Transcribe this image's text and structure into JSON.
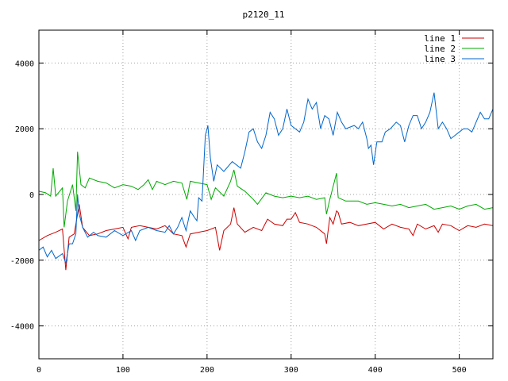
{
  "chart_data": {
    "type": "line",
    "title": "p2120_11",
    "xlabel": "",
    "ylabel": "",
    "xlim": [
      0,
      540
    ],
    "ylim": [
      -5000,
      5000
    ],
    "x_ticks": [
      0,
      100,
      200,
      300,
      400,
      500
    ],
    "y_ticks": [
      -4000,
      -2000,
      0,
      2000,
      4000
    ],
    "grid": true,
    "legend_position": "top-right",
    "series": [
      {
        "name": "line 1",
        "color": "#cc0000",
        "points": [
          [
            0,
            -1400
          ],
          [
            10,
            -1250
          ],
          [
            20,
            -1150
          ],
          [
            28,
            -1050
          ],
          [
            32,
            -2300
          ],
          [
            36,
            -1300
          ],
          [
            42,
            -1200
          ],
          [
            46,
            -600
          ],
          [
            48,
            -300
          ],
          [
            52,
            -1000
          ],
          [
            60,
            -1250
          ],
          [
            70,
            -1200
          ],
          [
            80,
            -1100
          ],
          [
            90,
            -1050
          ],
          [
            100,
            -1000
          ],
          [
            106,
            -1350
          ],
          [
            110,
            -1000
          ],
          [
            120,
            -950
          ],
          [
            130,
            -1000
          ],
          [
            140,
            -1050
          ],
          [
            150,
            -950
          ],
          [
            160,
            -1200
          ],
          [
            170,
            -1250
          ],
          [
            175,
            -1600
          ],
          [
            180,
            -1200
          ],
          [
            190,
            -1150
          ],
          [
            200,
            -1100
          ],
          [
            210,
            -1000
          ],
          [
            215,
            -1700
          ],
          [
            220,
            -1100
          ],
          [
            228,
            -900
          ],
          [
            232,
            -400
          ],
          [
            236,
            -900
          ],
          [
            245,
            -1150
          ],
          [
            255,
            -1000
          ],
          [
            265,
            -1100
          ],
          [
            272,
            -750
          ],
          [
            280,
            -900
          ],
          [
            290,
            -950
          ],
          [
            295,
            -750
          ],
          [
            300,
            -750
          ],
          [
            305,
            -550
          ],
          [
            310,
            -850
          ],
          [
            320,
            -900
          ],
          [
            330,
            -1000
          ],
          [
            340,
            -1200
          ],
          [
            342,
            -1500
          ],
          [
            346,
            -700
          ],
          [
            350,
            -900
          ],
          [
            354,
            -500
          ],
          [
            356,
            -550
          ],
          [
            360,
            -900
          ],
          [
            370,
            -850
          ],
          [
            380,
            -950
          ],
          [
            390,
            -900
          ],
          [
            400,
            -850
          ],
          [
            410,
            -1050
          ],
          [
            420,
            -900
          ],
          [
            430,
            -1000
          ],
          [
            440,
            -1050
          ],
          [
            445,
            -1250
          ],
          [
            450,
            -900
          ],
          [
            460,
            -1050
          ],
          [
            470,
            -950
          ],
          [
            475,
            -1150
          ],
          [
            480,
            -900
          ],
          [
            490,
            -950
          ],
          [
            500,
            -1100
          ],
          [
            510,
            -950
          ],
          [
            520,
            -1000
          ],
          [
            530,
            -900
          ],
          [
            540,
            -950
          ]
        ]
      },
      {
        "name": "line 2",
        "color": "#00aa00",
        "points": [
          [
            0,
            100
          ],
          [
            8,
            50
          ],
          [
            14,
            -50
          ],
          [
            17,
            800
          ],
          [
            20,
            -50
          ],
          [
            28,
            200
          ],
          [
            30,
            -1000
          ],
          [
            34,
            -200
          ],
          [
            40,
            300
          ],
          [
            44,
            -500
          ],
          [
            46,
            1300
          ],
          [
            50,
            300
          ],
          [
            55,
            200
          ],
          [
            60,
            500
          ],
          [
            70,
            400
          ],
          [
            80,
            350
          ],
          [
            90,
            200
          ],
          [
            100,
            300
          ],
          [
            110,
            250
          ],
          [
            118,
            150
          ],
          [
            125,
            300
          ],
          [
            130,
            450
          ],
          [
            135,
            150
          ],
          [
            140,
            400
          ],
          [
            150,
            300
          ],
          [
            160,
            400
          ],
          [
            170,
            350
          ],
          [
            176,
            -150
          ],
          [
            180,
            400
          ],
          [
            190,
            350
          ],
          [
            200,
            300
          ],
          [
            205,
            -150
          ],
          [
            210,
            200
          ],
          [
            220,
            -50
          ],
          [
            228,
            400
          ],
          [
            232,
            750
          ],
          [
            236,
            250
          ],
          [
            245,
            100
          ],
          [
            255,
            -150
          ],
          [
            260,
            -300
          ],
          [
            270,
            50
          ],
          [
            280,
            -50
          ],
          [
            290,
            -100
          ],
          [
            300,
            -50
          ],
          [
            310,
            -100
          ],
          [
            320,
            -50
          ],
          [
            330,
            -150
          ],
          [
            340,
            -100
          ],
          [
            342,
            -600
          ],
          [
            346,
            -150
          ],
          [
            352,
            450
          ],
          [
            354,
            650
          ],
          [
            356,
            -100
          ],
          [
            365,
            -200
          ],
          [
            380,
            -200
          ],
          [
            390,
            -300
          ],
          [
            400,
            -250
          ],
          [
            410,
            -300
          ],
          [
            420,
            -350
          ],
          [
            430,
            -300
          ],
          [
            440,
            -400
          ],
          [
            450,
            -350
          ],
          [
            460,
            -300
          ],
          [
            470,
            -450
          ],
          [
            480,
            -400
          ],
          [
            490,
            -350
          ],
          [
            500,
            -450
          ],
          [
            510,
            -350
          ],
          [
            520,
            -300
          ],
          [
            530,
            -450
          ],
          [
            540,
            -400
          ]
        ]
      },
      {
        "name": "line 3",
        "color": "#0066cc",
        "points": [
          [
            0,
            -1700
          ],
          [
            5,
            -1600
          ],
          [
            10,
            -1900
          ],
          [
            15,
            -1700
          ],
          [
            20,
            -1950
          ],
          [
            28,
            -1800
          ],
          [
            32,
            -2100
          ],
          [
            36,
            -1500
          ],
          [
            40,
            -1500
          ],
          [
            44,
            -1200
          ],
          [
            46,
            0
          ],
          [
            48,
            -600
          ],
          [
            52,
            -1000
          ],
          [
            58,
            -1300
          ],
          [
            65,
            -1150
          ],
          [
            70,
            -1250
          ],
          [
            80,
            -1300
          ],
          [
            90,
            -1100
          ],
          [
            100,
            -1250
          ],
          [
            110,
            -1100
          ],
          [
            115,
            -1400
          ],
          [
            120,
            -1100
          ],
          [
            130,
            -1000
          ],
          [
            140,
            -1100
          ],
          [
            150,
            -1150
          ],
          [
            155,
            -950
          ],
          [
            160,
            -1200
          ],
          [
            165,
            -1000
          ],
          [
            170,
            -700
          ],
          [
            175,
            -1100
          ],
          [
            180,
            -500
          ],
          [
            185,
            -700
          ],
          [
            188,
            -800
          ],
          [
            190,
            -100
          ],
          [
            194,
            -200
          ],
          [
            198,
            1800
          ],
          [
            201,
            2100
          ],
          [
            204,
            1100
          ],
          [
            208,
            400
          ],
          [
            212,
            900
          ],
          [
            220,
            700
          ],
          [
            230,
            1000
          ],
          [
            240,
            800
          ],
          [
            245,
            1300
          ],
          [
            250,
            1900
          ],
          [
            255,
            2000
          ],
          [
            260,
            1600
          ],
          [
            265,
            1400
          ],
          [
            270,
            1800
          ],
          [
            275,
            2500
          ],
          [
            280,
            2300
          ],
          [
            285,
            1800
          ],
          [
            290,
            2000
          ],
          [
            295,
            2600
          ],
          [
            300,
            2100
          ],
          [
            310,
            1900
          ],
          [
            315,
            2200
          ],
          [
            320,
            2900
          ],
          [
            325,
            2600
          ],
          [
            330,
            2800
          ],
          [
            335,
            2000
          ],
          [
            340,
            2400
          ],
          [
            345,
            2300
          ],
          [
            350,
            1800
          ],
          [
            355,
            2500
          ],
          [
            360,
            2200
          ],
          [
            365,
            2000
          ],
          [
            375,
            2100
          ],
          [
            380,
            2000
          ],
          [
            385,
            2200
          ],
          [
            390,
            1700
          ],
          [
            392,
            1400
          ],
          [
            395,
            1500
          ],
          [
            398,
            900
          ],
          [
            402,
            1600
          ],
          [
            408,
            1600
          ],
          [
            412,
            1900
          ],
          [
            418,
            2000
          ],
          [
            425,
            2200
          ],
          [
            430,
            2100
          ],
          [
            435,
            1600
          ],
          [
            440,
            2100
          ],
          [
            445,
            2400
          ],
          [
            450,
            2400
          ],
          [
            455,
            2000
          ],
          [
            460,
            2200
          ],
          [
            465,
            2500
          ],
          [
            470,
            3100
          ],
          [
            475,
            2000
          ],
          [
            480,
            2200
          ],
          [
            485,
            2000
          ],
          [
            490,
            1700
          ],
          [
            495,
            1800
          ],
          [
            500,
            1900
          ],
          [
            505,
            2000
          ],
          [
            510,
            2000
          ],
          [
            515,
            1900
          ],
          [
            520,
            2200
          ],
          [
            525,
            2500
          ],
          [
            530,
            2300
          ],
          [
            535,
            2300
          ],
          [
            540,
            2600
          ]
        ]
      }
    ]
  }
}
